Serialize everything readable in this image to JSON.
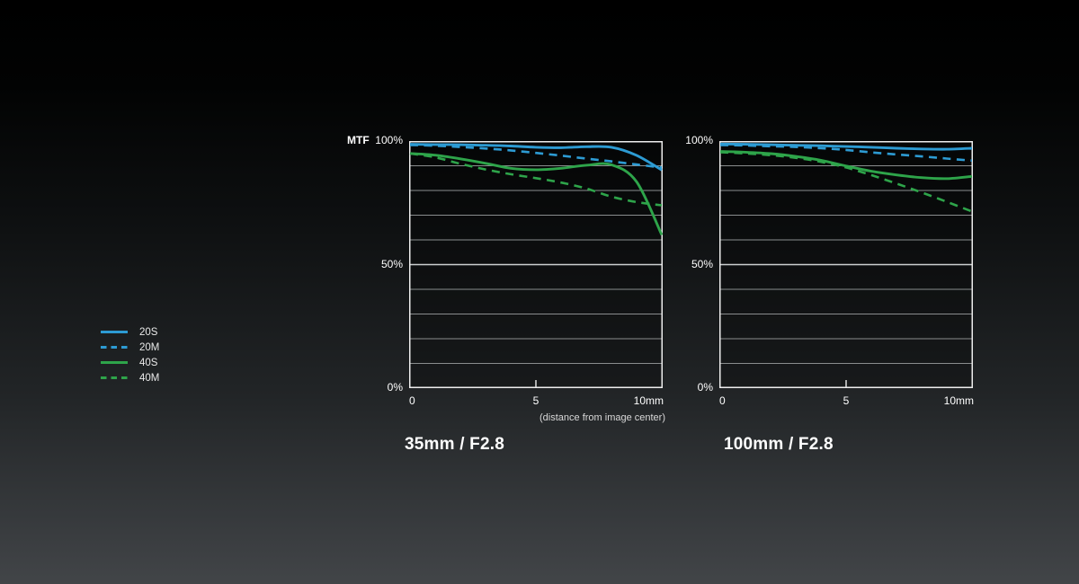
{
  "colors": {
    "blue": "#2D9BD3",
    "green": "#2EA44A",
    "plot_border": "#EDEDED",
    "grid_minor": "#8A8D8E",
    "grid_major": "#CDD0D1",
    "text": "#FFFFFF",
    "note_text": "#D9D9D9",
    "background_top": "#000000",
    "background_bottom": "#3E4144"
  },
  "legend": {
    "items": [
      {
        "label": "20S",
        "color_key": "blue",
        "style": "solid"
      },
      {
        "label": "20M",
        "color_key": "blue",
        "style": "dashed"
      },
      {
        "label": "40S",
        "color_key": "green",
        "style": "solid"
      },
      {
        "label": "40M",
        "color_key": "green",
        "style": "dashed"
      }
    ]
  },
  "chart_data": [
    {
      "type": "line",
      "title": "35mm / F2.8",
      "ylabel": "MTF",
      "x_note": "(distance from image center)",
      "x_unit": "mm",
      "xlim": [
        0,
        10
      ],
      "ylim_percent": [
        0,
        100
      ],
      "grid_interval_percent": 10,
      "x_ticks": [
        "0",
        "5",
        "10mm"
      ],
      "y_ticks": [
        "100%",
        "50%",
        "0%"
      ],
      "x": [
        0,
        1,
        2,
        3,
        4,
        5,
        6,
        7,
        8,
        9,
        10
      ],
      "series": [
        {
          "name": "20S",
          "color_key": "blue",
          "style": "solid",
          "values_percent": [
            98.7,
            98.6,
            98.5,
            98.3,
            98.0,
            97.5,
            97.3,
            97.7,
            97.5,
            94.2,
            88.3
          ]
        },
        {
          "name": "20M",
          "color_key": "blue",
          "style": "dashed",
          "values_percent": [
            98.4,
            98.1,
            97.6,
            97.0,
            96.2,
            95.2,
            94.1,
            92.9,
            91.8,
            90.5,
            89.3
          ]
        },
        {
          "name": "40S",
          "color_key": "green",
          "style": "solid",
          "values_percent": [
            95.0,
            94.3,
            92.8,
            91.0,
            89.0,
            88.4,
            89.0,
            90.2,
            90.4,
            83.5,
            62.0
          ]
        },
        {
          "name": "40M",
          "color_key": "green",
          "style": "dashed",
          "values_percent": [
            95.0,
            93.4,
            90.8,
            88.5,
            86.6,
            85.0,
            83.2,
            80.8,
            77.5,
            75.3,
            74.0
          ]
        }
      ]
    },
    {
      "type": "line",
      "title": "100mm / F2.8",
      "ylabel": "",
      "x_note": "",
      "x_unit": "mm",
      "xlim": [
        0,
        10
      ],
      "ylim_percent": [
        0,
        100
      ],
      "grid_interval_percent": 10,
      "x_ticks": [
        "0",
        "5",
        "10mm"
      ],
      "y_ticks": [
        "100%",
        "50%",
        "0%"
      ],
      "x": [
        0,
        1,
        2,
        3,
        4,
        5,
        6,
        7,
        8,
        9,
        10
      ],
      "series": [
        {
          "name": "20S",
          "color_key": "blue",
          "style": "solid",
          "values_percent": [
            98.8,
            98.7,
            98.5,
            98.3,
            98.1,
            97.8,
            97.5,
            97.1,
            96.8,
            96.7,
            97.1
          ]
        },
        {
          "name": "20M",
          "color_key": "blue",
          "style": "dashed",
          "values_percent": [
            98.4,
            98.2,
            97.9,
            97.6,
            97.1,
            96.4,
            95.4,
            94.6,
            93.8,
            92.9,
            92.1
          ]
        },
        {
          "name": "40S",
          "color_key": "green",
          "style": "solid",
          "values_percent": [
            95.8,
            95.5,
            94.9,
            93.8,
            92.2,
            89.9,
            87.8,
            86.3,
            85.2,
            84.8,
            85.7
          ]
        },
        {
          "name": "40M",
          "color_key": "green",
          "style": "dashed",
          "values_percent": [
            95.5,
            95.0,
            94.3,
            93.2,
            91.6,
            89.3,
            86.2,
            82.8,
            79.2,
            75.4,
            71.5
          ]
        }
      ]
    }
  ]
}
